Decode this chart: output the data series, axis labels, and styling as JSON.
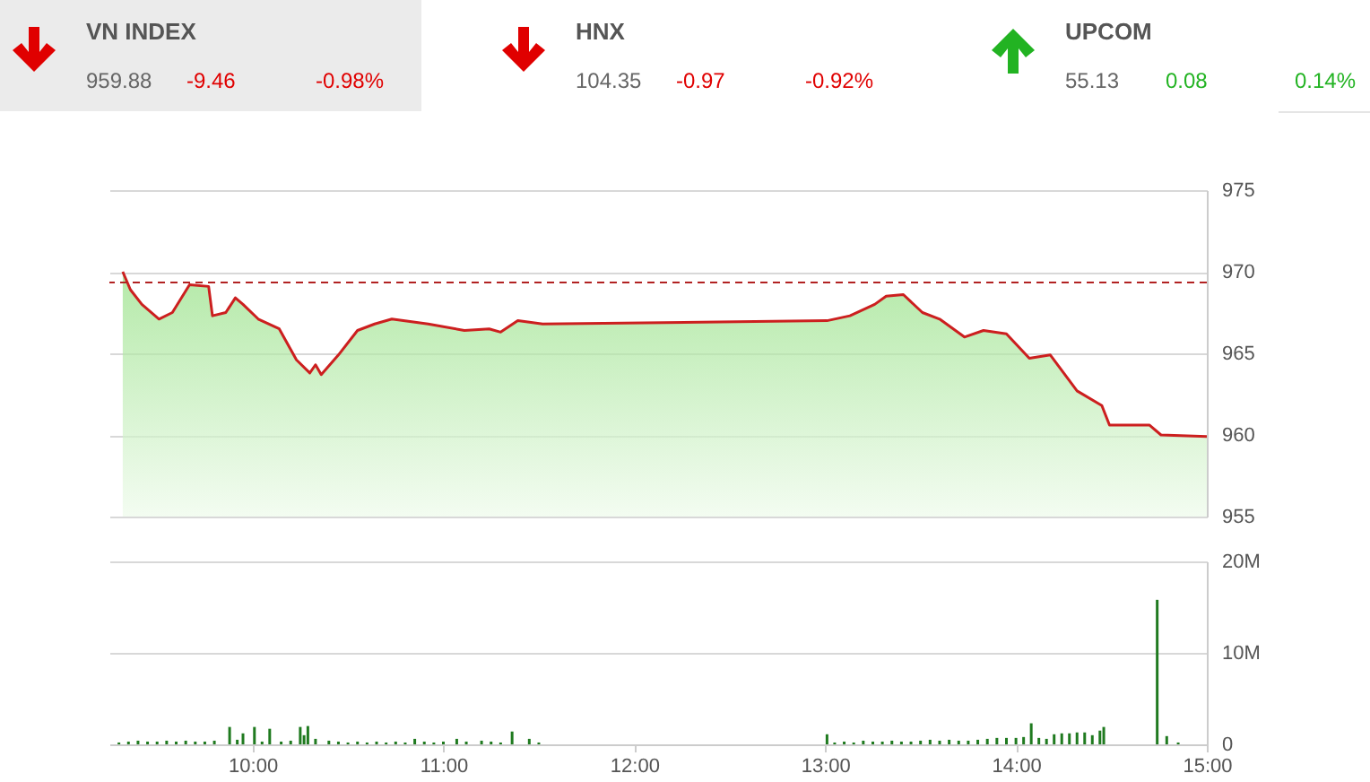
{
  "chart_data": [
    {
      "type": "other",
      "annotations": [
        "VN INDEX",
        "959.88",
        "-9.46",
        "-0.98%",
        "HNX",
        "104.35",
        "-0.97",
        "-0.92%",
        "UPCOM",
        "55.13",
        "0.08",
        "0.14%"
      ],
      "colors": [
        "#e00000",
        "#e00000",
        "#22b322"
      ]
    },
    {
      "type": "area",
      "xlim": [
        9.25,
        15
      ],
      "ylim": [
        955,
        975
      ],
      "yticks": [
        955,
        960,
        965,
        970,
        975
      ],
      "grid": "y",
      "tick_labels": "y",
      "x": [
        9.32,
        9.36,
        9.42,
        9.51,
        9.58,
        9.67,
        9.77,
        9.79,
        9.86,
        9.91,
        9.95,
        10.03,
        10.14,
        10.23,
        10.3,
        10.33,
        10.36,
        10.45,
        10.55,
        10.64,
        10.73,
        10.92,
        11.11,
        11.24,
        11.3,
        11.39,
        11.52,
        13.01,
        13.13,
        13.26,
        13.32,
        13.41,
        13.51,
        13.6,
        13.73,
        13.83,
        13.95,
        14.07,
        14.18,
        14.32,
        14.45,
        14.49,
        14.7,
        14.76,
        15
      ],
      "series": [
        {
          "color": "#cc1f1f",
          "values": [
            970,
            968.9,
            968,
            967.1,
            967.5,
            969.2,
            969.1,
            967.3,
            967.5,
            968.4,
            968,
            967.1,
            966.5,
            964.6,
            963.8,
            964.3,
            963.7,
            964.9,
            966.4,
            966.8,
            967.1,
            966.8,
            966.4,
            966.5,
            966.3,
            967,
            966.8,
            967,
            967.3,
            968,
            968.5,
            968.6,
            967.5,
            967.1,
            966,
            966.4,
            966.2,
            964.7,
            964.9,
            962.7,
            961.8,
            960.6,
            960.6,
            960,
            959.9
          ]
        }
      ],
      "ref_lines": [
        {
          "axis": "y",
          "value": 969.34,
          "color": "#b22222",
          "line_style": "dashed"
        }
      ]
    },
    {
      "type": "bar",
      "xlim": [
        9.25,
        15
      ],
      "xticks": [
        {
          "value": 10,
          "label": "10:00"
        },
        {
          "value": 11,
          "label": "11:00"
        },
        {
          "value": 12,
          "label": "12:00"
        },
        {
          "value": 13,
          "label": "13:00"
        },
        {
          "value": 14,
          "label": "14:00"
        },
        {
          "value": 15,
          "label": "15:00"
        }
      ],
      "ylim": [
        0,
        20
      ],
      "yticks": [
        0,
        {
          "value": 10,
          "label": "10M"
        },
        {
          "value": 20,
          "label": "20M"
        }
      ],
      "grid": "y",
      "x": [
        9.3,
        9.35,
        9.4,
        9.45,
        9.5,
        9.55,
        9.6,
        9.65,
        9.7,
        9.75,
        9.8,
        9.88,
        9.92,
        9.95,
        10.01,
        10.05,
        10.09,
        10.15,
        10.2,
        10.25,
        10.27,
        10.29,
        10.33,
        10.4,
        10.45,
        10.5,
        10.55,
        10.6,
        10.65,
        10.7,
        10.75,
        10.8,
        10.85,
        10.9,
        10.95,
        11,
        11.07,
        11.12,
        11.2,
        11.25,
        11.3,
        11.36,
        11.45,
        11.5,
        13.01,
        13.05,
        13.1,
        13.15,
        13.2,
        13.25,
        13.3,
        13.35,
        13.4,
        13.45,
        13.5,
        13.55,
        13.6,
        13.65,
        13.7,
        13.75,
        13.8,
        13.85,
        13.9,
        13.95,
        14,
        14.04,
        14.08,
        14.12,
        14.16,
        14.2,
        14.24,
        14.28,
        14.32,
        14.36,
        14.4,
        14.44,
        14.46,
        14.74,
        14.79,
        14.85
      ],
      "series": [
        {
          "color": "#1f7a1f",
          "values": [
            0.2,
            0.3,
            0.4,
            0.3,
            0.3,
            0.4,
            0.3,
            0.4,
            0.3,
            0.3,
            0.4,
            1.9,
            0.5,
            1.2,
            1.9,
            0.3,
            1.7,
            0.3,
            0.4,
            1.9,
            1,
            2,
            0.6,
            0.4,
            0.3,
            0.2,
            0.3,
            0.2,
            0.3,
            0.2,
            0.3,
            0.2,
            0.6,
            0.3,
            0.2,
            0.3,
            0.6,
            0.3,
            0.4,
            0.3,
            0.2,
            1.4,
            0.6,
            0.2,
            1.1,
            0.2,
            0.3,
            0.2,
            0.4,
            0.3,
            0.3,
            0.4,
            0.3,
            0.3,
            0.4,
            0.5,
            0.4,
            0.5,
            0.4,
            0.4,
            0.5,
            0.6,
            0.7,
            0.7,
            0.7,
            0.8,
            2.3,
            0.7,
            0.6,
            1.1,
            1.2,
            1.2,
            1.3,
            1.3,
            1,
            1.5,
            1.9,
            15.8,
            0.9,
            0.2
          ]
        }
      ]
    }
  ]
}
